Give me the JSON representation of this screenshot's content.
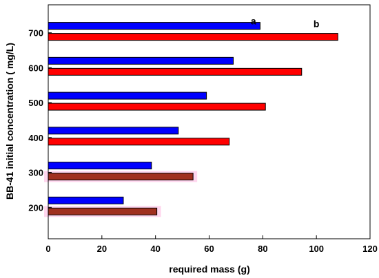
{
  "chart_data": {
    "type": "bar",
    "orientation": "horizontal",
    "title": "",
    "xlabel": "required mass (g)",
    "ylabel": "BB-41 initial concentration ( mg/L)",
    "xlim": [
      0,
      120
    ],
    "xticks": [
      0,
      20,
      40,
      60,
      80,
      100,
      120
    ],
    "yticks": [
      200,
      300,
      400,
      500,
      600,
      700
    ],
    "grid": false,
    "legend": "none",
    "categories": [
      200,
      300,
      400,
      500,
      600,
      700
    ],
    "series": [
      {
        "color": "#0000ff",
        "values": [
          28,
          38.5,
          48.5,
          59,
          69,
          79
        ]
      },
      {
        "color": "#ff0000",
        "values": [
          40.5,
          54,
          67.5,
          81,
          94.5,
          108
        ]
      }
    ],
    "highlight_color": "#a0301f",
    "highlight_glow": "#ffd6ee",
    "highlighted_categories": [
      200,
      300
    ],
    "annotations": [
      {
        "text": "a",
        "x": 76.5,
        "y": 724
      },
      {
        "text": "b",
        "x": 100,
        "y": 716
      }
    ]
  }
}
